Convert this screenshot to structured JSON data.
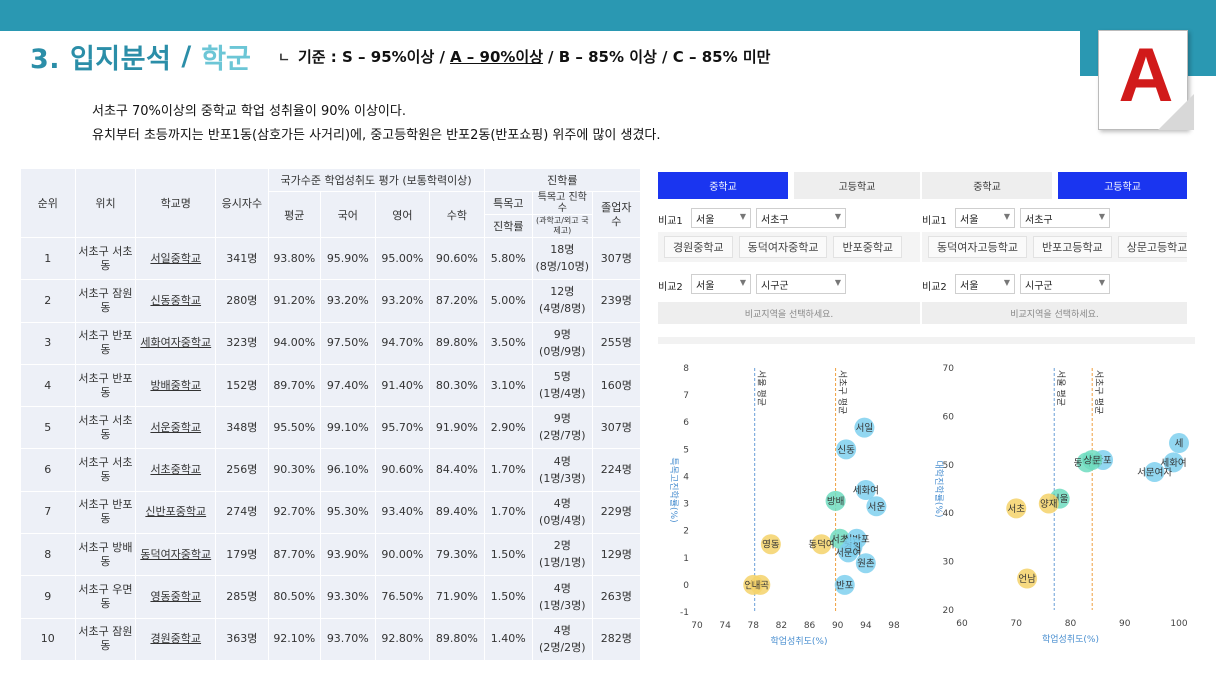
{
  "header": {
    "title_main": "3. 입지분석",
    "title_slash": "/",
    "title_sub": "학군",
    "criteria_mark": "ㄴ",
    "criteria_pre": "기준 : S – 95%이상 /",
    "criteria_hl": "A – 90%이상",
    "criteria_post": "/ B – 85% 이상 / C – 85% 미만"
  },
  "grade": "A",
  "summary": [
    "서초구 70%이상의 중학교 학업 성취율이 90% 이상이다.",
    "유치부터 초등까지는 반포1동(삼호가든 사거리)에, 중고등학원은 반포2동(반포쇼핑) 위주에 많이 생겼다."
  ],
  "table": {
    "headers": {
      "rank": "순위",
      "location": "위치",
      "school": "학교명",
      "takers": "응시자수",
      "group_eval": "국가수준 학업성취도 평가 (보통학력이상)",
      "avg": "평균",
      "korean": "국어",
      "english": "영어",
      "math": "수학",
      "group_adv": "진학률",
      "special_1": "특목고",
      "special_2": "진학률",
      "special_count_1": "특목고 진학",
      "special_count_2": "수",
      "special_count_note": "(과학고/외고 국제고)",
      "grad_1": "졸업자",
      "grad_2": "수"
    },
    "rows": [
      {
        "rank": "1",
        "location": "서초구 서초동",
        "school": "서일중학교",
        "takers": "341명",
        "avg": "93.80%",
        "korean": "95.90%",
        "english": "95.00%",
        "math": "90.60%",
        "special_rate": "5.80%",
        "special_count": "18명",
        "special_detail": "(8명/10명)",
        "grads": "307명"
      },
      {
        "rank": "2",
        "location": "서초구 잠원동",
        "school": "신동중학교",
        "takers": "280명",
        "avg": "91.20%",
        "korean": "93.20%",
        "english": "93.20%",
        "math": "87.20%",
        "special_rate": "5.00%",
        "special_count": "12명",
        "special_detail": "(4명/8명)",
        "grads": "239명"
      },
      {
        "rank": "3",
        "location": "서초구 반포동",
        "school": "세화여자중학교",
        "takers": "323명",
        "avg": "94.00%",
        "korean": "97.50%",
        "english": "94.70%",
        "math": "89.80%",
        "special_rate": "3.50%",
        "special_count": "9명",
        "special_detail": "(0명/9명)",
        "grads": "255명"
      },
      {
        "rank": "4",
        "location": "서초구 반포동",
        "school": "방배중학교",
        "takers": "152명",
        "avg": "89.70%",
        "korean": "97.40%",
        "english": "91.40%",
        "math": "80.30%",
        "special_rate": "3.10%",
        "special_count": "5명",
        "special_detail": "(1명/4명)",
        "grads": "160명"
      },
      {
        "rank": "5",
        "location": "서초구 서초동",
        "school": "서운중학교",
        "takers": "348명",
        "avg": "95.50%",
        "korean": "99.10%",
        "english": "95.70%",
        "math": "91.90%",
        "special_rate": "2.90%",
        "special_count": "9명",
        "special_detail": "(2명/7명)",
        "grads": "307명"
      },
      {
        "rank": "6",
        "location": "서초구 서초동",
        "school": "서초중학교",
        "takers": "256명",
        "avg": "90.30%",
        "korean": "96.10%",
        "english": "90.60%",
        "math": "84.40%",
        "special_rate": "1.70%",
        "special_count": "4명",
        "special_detail": "(1명/3명)",
        "grads": "224명"
      },
      {
        "rank": "7",
        "location": "서초구 반포동",
        "school": "신반포중학교",
        "takers": "274명",
        "avg": "92.70%",
        "korean": "95.30%",
        "english": "93.40%",
        "math": "89.40%",
        "special_rate": "1.70%",
        "special_count": "4명",
        "special_detail": "(0명/4명)",
        "grads": "229명"
      },
      {
        "rank": "8",
        "location": "서초구 방배동",
        "school": "동덕여자중학교",
        "takers": "179명",
        "avg": "87.70%",
        "korean": "93.90%",
        "english": "90.00%",
        "math": "79.30%",
        "special_rate": "1.50%",
        "special_count": "2명",
        "special_detail": "(1명/1명)",
        "grads": "129명"
      },
      {
        "rank": "9",
        "location": "서초구 우면동",
        "school": "영동중학교",
        "takers": "285명",
        "avg": "80.50%",
        "korean": "93.30%",
        "english": "76.50%",
        "math": "71.90%",
        "special_rate": "1.50%",
        "special_count": "4명",
        "special_detail": "(1명/3명)",
        "grads": "263명"
      },
      {
        "rank": "10",
        "location": "서초구 잠원동",
        "school": "경원중학교",
        "takers": "363명",
        "avg": "92.10%",
        "korean": "93.70%",
        "english": "92.80%",
        "math": "89.80%",
        "special_rate": "1.40%",
        "special_count": "4명",
        "special_detail": "(2명/2명)",
        "grads": "282명"
      }
    ]
  },
  "panel_left": {
    "tab_middle": "중학교",
    "tab_high": "고등학교",
    "active": "middle",
    "cmp1_label": "비교1",
    "cmp1_city": "서울",
    "cmp1_district": "서초구",
    "chips": [
      "경원중학교",
      "동덕여자중학교",
      "반포중학교"
    ],
    "cmp2_label": "비교2",
    "cmp2_city": "서울",
    "cmp2_district": "시구군",
    "placeholder": "비교지역을 선택하세요."
  },
  "panel_right": {
    "tab_middle": "중학교",
    "tab_high": "고등학교",
    "active": "high",
    "cmp1_label": "비교1",
    "cmp1_city": "서울",
    "cmp1_district": "서초구",
    "chips": [
      "동덕여자고등학교",
      "반포고등학교",
      "상문고등학교"
    ],
    "cmp2_label": "비교2",
    "cmp2_city": "서울",
    "cmp2_district": "시구군",
    "placeholder": "비교지역을 선택하세요."
  },
  "chart_data": [
    {
      "type": "scatter",
      "title": "",
      "xlabel": "학업성취도(%)",
      "ylabel": "특목고진학률(%)",
      "xlim": [
        70,
        99
      ],
      "ylim": [
        -1,
        8
      ],
      "xticks": [
        70,
        74,
        78,
        82,
        86,
        90,
        94,
        98
      ],
      "yticks": [
        -1,
        0,
        1,
        2,
        3,
        4,
        5,
        6,
        7,
        8
      ],
      "reference_lines": [
        {
          "label": "서울 평균",
          "x": 78.2,
          "color": "#6a9fd8"
        },
        {
          "label": "서초구 평균",
          "x": 89.7,
          "color": "#f0a040"
        }
      ],
      "points": [
        {
          "label": "서일",
          "x": 93.8,
          "y": 5.8,
          "color": "#7fd0ee"
        },
        {
          "label": "신동",
          "x": 91.2,
          "y": 5.0,
          "color": "#7fd0ee"
        },
        {
          "label": "세화여",
          "x": 94.0,
          "y": 3.5,
          "color": "#7fd0ee"
        },
        {
          "label": "방배",
          "x": 89.7,
          "y": 3.1,
          "color": "#6fdcc0"
        },
        {
          "label": "서운",
          "x": 95.5,
          "y": 2.9,
          "color": "#7fd0ee"
        },
        {
          "label": "서초",
          "x": 90.3,
          "y": 1.7,
          "color": "#6fdcc0"
        },
        {
          "label": "신반포",
          "x": 92.7,
          "y": 1.7,
          "color": "#7fd0ee"
        },
        {
          "label": "동덕여",
          "x": 87.7,
          "y": 1.5,
          "color": "#f5d26a"
        },
        {
          "label": "영동",
          "x": 80.5,
          "y": 1.5,
          "color": "#f5d26a"
        },
        {
          "label": "경원",
          "x": 92.1,
          "y": 1.4,
          "color": "#7fd0ee"
        },
        {
          "label": "서문여",
          "x": 91.5,
          "y": 1.2,
          "color": "#7fd0ee"
        },
        {
          "label": "원촌",
          "x": 94.0,
          "y": 0.8,
          "color": "#7fd0ee"
        },
        {
          "label": "반포",
          "x": 91.0,
          "y": 0.0,
          "color": "#7fd0ee"
        },
        {
          "label": "언남",
          "x": 78.0,
          "y": 0.0,
          "color": "#f5d26a"
        },
        {
          "label": "내곡",
          "x": 79.0,
          "y": 0.0,
          "color": "#f5d26a"
        }
      ]
    },
    {
      "type": "scatter",
      "title": "",
      "xlabel": "학업성취도(%)",
      "ylabel": "대학진학률(%)",
      "xlim": [
        60,
        100
      ],
      "ylim": [
        20,
        70
      ],
      "xticks": [
        60,
        70,
        80,
        90,
        100
      ],
      "yticks": [
        20,
        30,
        40,
        50,
        60,
        70
      ],
      "reference_lines": [
        {
          "label": "서울 평균",
          "x": 77.0,
          "color": "#6a9fd8"
        },
        {
          "label": "서초구 평균",
          "x": 84.0,
          "color": "#f0a040"
        }
      ],
      "points": [
        {
          "label": "세",
          "x": 100.0,
          "y": 54.5,
          "color": "#7fd0ee"
        },
        {
          "label": "세화여",
          "x": 99.0,
          "y": 50.5,
          "color": "#7fd0ee"
        },
        {
          "label": "서문여자",
          "x": 95.5,
          "y": 48.5,
          "color": "#7fd0ee"
        },
        {
          "label": "반포",
          "x": 86.0,
          "y": 51.0,
          "color": "#7fd0ee"
        },
        {
          "label": "동덕여",
          "x": 83.0,
          "y": 50.5,
          "color": "#6fdcc0"
        },
        {
          "label": "상문",
          "x": 84.0,
          "y": 51.0,
          "color": "#6fdcc0"
        },
        {
          "label": "서울",
          "x": 78.0,
          "y": 43.0,
          "color": "#6fdcc0"
        },
        {
          "label": "양재",
          "x": 76.0,
          "y": 42.0,
          "color": "#f5d26a"
        },
        {
          "label": "서초",
          "x": 70.0,
          "y": 41.0,
          "color": "#f5d26a"
        },
        {
          "label": "언남",
          "x": 72.0,
          "y": 26.5,
          "color": "#f5d26a"
        }
      ]
    }
  ]
}
